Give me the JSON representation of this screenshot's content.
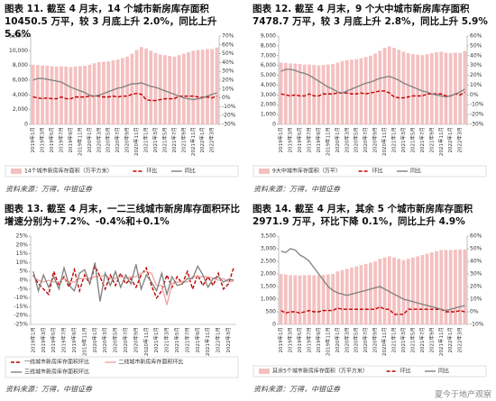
{
  "chart_data": [
    {
      "type": "combo",
      "title": "图表 11. 截至 4 月末，14 个城市新房库存面积 10450.5 万平，较 3 月底上升 2.0%，同比上升 5.6%",
      "source": "资料来源：万得，中银证券",
      "categories": [
        "2019年1月",
        null,
        "2019年3月",
        null,
        "2019年5月",
        null,
        "2019年7月",
        null,
        "2019年9月",
        null,
        "2019年11月",
        null,
        "2020年1月",
        null,
        "2020年3月",
        null,
        "2020年5月",
        null,
        "2020年7月",
        null,
        "2020年9月",
        null,
        "2020年11月",
        null,
        "2021年1月",
        null,
        "2021年3月",
        null,
        "2021年5月",
        null,
        "2021年7月",
        null,
        "2021年9月",
        null,
        "2021年11月",
        null,
        "2022年1月",
        null,
        "2022年3月",
        null
      ],
      "ylim": [
        0,
        12000
      ],
      "yticks": [
        0,
        {
          "value": 2000,
          "label": "2,000"
        },
        {
          "value": 4000,
          "label": "4,000"
        },
        {
          "value": 6000,
          "label": "6,000"
        },
        {
          "value": 8000,
          "label": "8,000"
        },
        {
          "value": 10000,
          "label": "10,000"
        },
        {
          "value": 12000,
          "label": "12,000"
        }
      ],
      "y2lim": [
        -30,
        70
      ],
      "y2ticks": [
        {
          "value": -30,
          "label": "-30%"
        },
        {
          "value": -20,
          "label": "-20%"
        },
        {
          "value": -10,
          "label": "-10%"
        },
        {
          "value": 0,
          "label": "0%"
        },
        {
          "value": 10,
          "label": "10%"
        },
        {
          "value": 20,
          "label": "20%"
        },
        {
          "value": 30,
          "label": "30%"
        },
        {
          "value": 40,
          "label": "40%"
        },
        {
          "value": 50,
          "label": "50%"
        },
        {
          "value": 60,
          "label": "60%"
        },
        {
          "value": 70,
          "label": "70%"
        }
      ],
      "series": [
        {
          "name": "14个城市新房库存面积（万平方米）",
          "type": "bar",
          "color": "#f4c0c0",
          "values": [
            8100,
            8050,
            8000,
            8000,
            7900,
            7850,
            7900,
            7850,
            7800,
            7850,
            7900,
            7950,
            8100,
            8300,
            8450,
            8500,
            8550,
            8700,
            8800,
            9000,
            9200,
            9600,
            10100,
            10500,
            10300,
            10000,
            9700,
            9500,
            9400,
            9300,
            9200,
            9400,
            9600,
            9800,
            10000,
            10100,
            10150,
            10250,
            10245,
            10450.5
          ]
        },
        {
          "name": "环比",
          "type": "line",
          "dash": true,
          "axis": "y2",
          "color": "#c00000",
          "values": [
            1,
            0,
            -1,
            0,
            -1,
            -1,
            1,
            -1,
            -1,
            1,
            1,
            1,
            2,
            2,
            2,
            1,
            1,
            2,
            1,
            2,
            2,
            4,
            5,
            4,
            -2,
            -3,
            -3,
            -2,
            -1,
            -1,
            -1,
            2,
            2,
            2,
            2,
            1,
            0.5,
            1,
            0,
            2.0
          ]
        },
        {
          "name": "同比",
          "type": "line",
          "axis": "y2",
          "color": "#7f7f7f",
          "values": [
            20,
            22,
            22,
            21,
            20,
            19,
            18,
            15,
            12,
            10,
            8,
            6,
            3,
            2,
            3,
            5,
            7,
            9,
            11,
            12,
            14,
            16,
            16,
            17,
            15,
            13,
            12,
            10,
            8,
            6,
            4,
            2,
            0,
            -1,
            -2,
            -1,
            0,
            2,
            4,
            5.6
          ]
        }
      ]
    },
    {
      "type": "combo",
      "title": "图表 12. 截至 4 月末，9 个大中城市新房库存面积 7478.7 万平，较 3 月底上升 2.8%，同比上升 5.9%",
      "source": "资料来源：万得，中银证券",
      "categories": [
        "2019年1月",
        null,
        "2019年3月",
        null,
        "2019年5月",
        null,
        "2019年7月",
        null,
        "2019年9月",
        null,
        "2019年11月",
        null,
        "2020年1月",
        null,
        "2020年3月",
        null,
        "2020年5月",
        null,
        "2020年7月",
        null,
        "2020年9月",
        null,
        "2020年11月",
        null,
        "2021年1月",
        null,
        "2021年3月",
        null,
        "2021年5月",
        null,
        "2021年7月",
        null,
        "2021年9月",
        null,
        "2021年11月",
        null,
        "2022年1月",
        null,
        "2022年3月",
        null
      ],
      "ylim": [
        0,
        9000
      ],
      "yticks": [
        0,
        {
          "value": 1000,
          "label": "1,000"
        },
        {
          "value": 2000,
          "label": "2,000"
        },
        {
          "value": 3000,
          "label": "3,000"
        },
        {
          "value": 4000,
          "label": "4,000"
        },
        {
          "value": 5000,
          "label": "5,000"
        },
        {
          "value": 6000,
          "label": "6,000"
        },
        {
          "value": 7000,
          "label": "7,000"
        },
        {
          "value": 8000,
          "label": "8,000"
        },
        {
          "value": 9000,
          "label": "9,000"
        }
      ],
      "y2lim": [
        -30,
        60
      ],
      "y2ticks": [
        {
          "value": -30,
          "label": "-30%"
        },
        {
          "value": -20,
          "label": "-20%"
        },
        {
          "value": -10,
          "label": "-10%"
        },
        {
          "value": 0,
          "label": "0%"
        },
        {
          "value": 10,
          "label": "10%"
        },
        {
          "value": 20,
          "label": "20%"
        },
        {
          "value": 30,
          "label": "30%"
        },
        {
          "value": 40,
          "label": "40%"
        },
        {
          "value": 50,
          "label": "50%"
        },
        {
          "value": 60,
          "label": "60%"
        }
      ],
      "series": [
        {
          "name": "9大中城市库存面积（万平）",
          "type": "bar",
          "color": "#f4c0c0",
          "values": [
            6300,
            6250,
            6200,
            6200,
            6150,
            6100,
            6100,
            6050,
            6000,
            6050,
            6100,
            6150,
            6300,
            6450,
            6550,
            6600,
            6650,
            6750,
            6850,
            7000,
            7200,
            7500,
            7800,
            7950,
            7800,
            7600,
            7400,
            7250,
            7150,
            7100,
            7050,
            7150,
            7250,
            7350,
            7400,
            7300,
            7250,
            7300,
            7275,
            7478.7
          ]
        },
        {
          "name": "环比",
          "type": "line",
          "dash": true,
          "axis": "y2",
          "color": "#c00000",
          "values": [
            1,
            0,
            -1,
            0,
            -1,
            -1,
            1,
            -1,
            -1,
            1,
            1,
            1,
            2,
            2,
            2,
            1,
            1,
            2,
            1,
            2,
            3,
            4,
            4,
            2,
            -2,
            -3,
            -3,
            -2,
            -1,
            -1,
            -1,
            1,
            1,
            1,
            1,
            -1,
            -1,
            1,
            0,
            2.8
          ]
        },
        {
          "name": "同比",
          "type": "line",
          "axis": "y2",
          "color": "#7f7f7f",
          "values": [
            24,
            26,
            26,
            25,
            23,
            22,
            20,
            17,
            14,
            11,
            8,
            6,
            3,
            2,
            4,
            6,
            8,
            10,
            12,
            13,
            15,
            17,
            18,
            19,
            17,
            15,
            12,
            10,
            8,
            6,
            4,
            3,
            1,
            0,
            -1,
            -2,
            -1,
            1,
            3,
            5.9
          ]
        }
      ]
    },
    {
      "type": "line",
      "title": "图表 13. 截至 4 月末，一二三线城市新房库存面积环比增速分别为+7.2%、-0.4%和+0.1%",
      "source": "资料来源：万得，中银证券",
      "categories": [
        "2019年1月",
        null,
        "2019年3月",
        null,
        "2019年5月",
        null,
        "2019年7月",
        null,
        "2019年9月",
        null,
        "2019年11月",
        null,
        "2020年1月",
        null,
        "2020年3月",
        null,
        "2020年5月",
        null,
        "2020年7月",
        null,
        "2020年9月",
        null,
        "2020年11月",
        null,
        "2021年1月",
        null,
        "2021年3月",
        null,
        "2021年5月",
        null,
        "2021年7月",
        null,
        "2021年9月",
        null,
        "2021年11月",
        null,
        "2022年1月",
        null,
        "2022年3月",
        null
      ],
      "ylim": [
        -25,
        25
      ],
      "yticks": [
        {
          "value": -25,
          "label": "-25%"
        },
        {
          "value": -20,
          "label": "-20%"
        },
        {
          "value": -15,
          "label": "-15%"
        },
        {
          "value": -10,
          "label": "-10%"
        },
        {
          "value": -5,
          "label": "-5%"
        },
        {
          "value": 0,
          "label": "0%"
        },
        {
          "value": 5,
          "label": "5%"
        },
        {
          "value": 10,
          "label": "10%"
        },
        {
          "value": 15,
          "label": "15%"
        },
        {
          "value": 20,
          "label": "20%"
        },
        {
          "value": 25,
          "label": "25%"
        }
      ],
      "series": [
        {
          "name": "一线城市新房库存面积环比",
          "type": "line",
          "dash": true,
          "color": "#c00000",
          "values": [
            3,
            -2,
            -5,
            -8,
            5,
            -3,
            2,
            -4,
            6,
            -6,
            3,
            -2,
            8,
            2,
            -5,
            3,
            -3,
            4,
            -2,
            1,
            -4,
            3,
            7,
            -3,
            -10,
            -6,
            3,
            -4,
            2,
            -2,
            5,
            -5,
            3,
            -3,
            2,
            -3,
            4,
            -5,
            -2,
            7.2
          ]
        },
        {
          "name": "二线城市新房库存面积环比",
          "type": "line",
          "color": "#f2a0a0",
          "values": [
            2,
            0,
            -1,
            0,
            -1,
            -1,
            1,
            -1,
            -1,
            1,
            1,
            1,
            2,
            2,
            3,
            1,
            1,
            2,
            1,
            2,
            2,
            4,
            5,
            4,
            -3,
            -3,
            -14,
            -2,
            -1,
            -1,
            -1,
            2,
            2,
            2,
            2,
            1,
            0,
            1,
            -1,
            -0.4
          ]
        },
        {
          "name": "三线城市新房库存面积环比",
          "type": "line",
          "color": "#7f7f7f",
          "values": [
            5,
            -6,
            3,
            -4,
            2,
            -5,
            7,
            -3,
            -6,
            4,
            6,
            -2,
            10,
            -12,
            4,
            -3,
            5,
            -4,
            3,
            -2,
            9,
            -5,
            3,
            -1,
            -6,
            4,
            -8,
            2,
            -3,
            -2,
            1,
            1,
            8,
            3,
            -4,
            1,
            2,
            -1,
            0.5,
            0.1
          ]
        }
      ]
    },
    {
      "type": "combo",
      "title": "图表 14. 截至 4 月末，其余 5 个城市新房库存面积 2971.9 万平，环比下降 0.1%，同比上升 4.9%",
      "source": "资料来源：万得，中银证券",
      "categories": [
        "2019年1月",
        null,
        "2019年3月",
        null,
        "2019年5月",
        null,
        "2019年7月",
        null,
        "2019年9月",
        null,
        "2019年11月",
        null,
        "2020年1月",
        null,
        "2020年3月",
        null,
        "2020年5月",
        null,
        "2020年7月",
        null,
        "2020年9月",
        null,
        "2020年11月",
        null,
        "2021年1月",
        null,
        "2021年3月",
        null,
        "2021年5月",
        null,
        "2021年7月",
        null,
        "2021年9月",
        null,
        "2021年11月",
        null,
        "2022年1月",
        null,
        "2022年3月",
        null
      ],
      "ylim": [
        0,
        3500
      ],
      "yticks": [
        0,
        500,
        {
          "value": 1000,
          "label": "1,000"
        },
        {
          "value": 1500,
          "label": "1,500"
        },
        {
          "value": 2000,
          "label": "2,000"
        },
        {
          "value": 2500,
          "label": "2,500"
        },
        {
          "value": 3000,
          "label": "3,000"
        },
        {
          "value": 3500,
          "label": "3,500"
        }
      ],
      "y2lim": [
        -10,
        60
      ],
      "y2ticks": [
        {
          "value": -10,
          "label": "-10%"
        },
        {
          "value": 0,
          "label": "0%"
        },
        {
          "value": 10,
          "label": "10%"
        },
        {
          "value": 20,
          "label": "20%"
        },
        {
          "value": 30,
          "label": "30%"
        },
        {
          "value": 40,
          "label": "40%"
        },
        {
          "value": 50,
          "label": "50%"
        },
        {
          "value": 60,
          "label": "60%"
        }
      ],
      "series": [
        {
          "name": "其余5个城市新房库存面积（万平方米）",
          "type": "bar",
          "color": "#f4c0c0",
          "values": [
            2000,
            1980,
            1950,
            1950,
            1940,
            1950,
            1960,
            1950,
            1950,
            1960,
            1980,
            2000,
            2100,
            2150,
            2200,
            2250,
            2300,
            2350,
            2400,
            2450,
            2500,
            2600,
            2650,
            2700,
            2650,
            2600,
            2550,
            2600,
            2650,
            2700,
            2750,
            2800,
            2850,
            2900,
            2950,
            2950,
            2950,
            2960,
            2975,
            2971.9
          ]
        },
        {
          "name": "环比",
          "type": "line",
          "dash": true,
          "axis": "y2",
          "color": "#c00000",
          "values": [
            1,
            -1,
            0,
            0,
            -1,
            0,
            1,
            0,
            0,
            1,
            1,
            1,
            3,
            2,
            2,
            2,
            2,
            2,
            2,
            2,
            2,
            4,
            2,
            2,
            -2,
            -2,
            -2,
            2,
            2,
            2,
            2,
            2,
            2,
            2,
            2,
            0,
            0,
            0,
            1,
            -0.1
          ]
        },
        {
          "name": "同比",
          "type": "line",
          "axis": "y2",
          "color": "#7f7f7f",
          "values": [
            48,
            47,
            50,
            49,
            45,
            43,
            40,
            35,
            30,
            25,
            20,
            17,
            15,
            14,
            13,
            14,
            15,
            16,
            17,
            18,
            19,
            20,
            18,
            16,
            14,
            12,
            10,
            9,
            8,
            7,
            6,
            5,
            4,
            3,
            2,
            1,
            2,
            3,
            4,
            4.9
          ]
        }
      ]
    }
  ],
  "watermark": "夏今于地产观察"
}
